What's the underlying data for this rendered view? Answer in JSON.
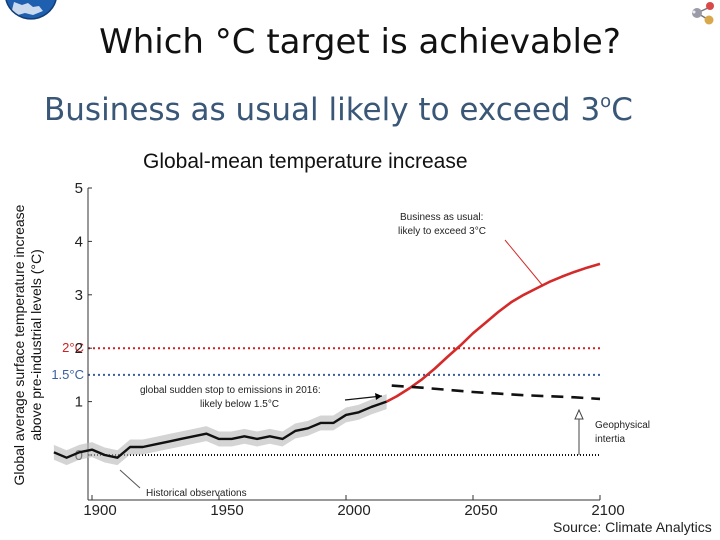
{
  "slide": {
    "title": "Which °C target is achievable?",
    "subtitle_main": "Business as usual likely to exceed 3",
    "subtitle_sup": "o",
    "subtitle_unit": "C",
    "source": "Source: Climate Analytics"
  },
  "colors": {
    "bau": "#d42a2a",
    "two_degree": "#cc2222",
    "one_five_degree": "#3a5f9e",
    "observed": "#111111",
    "uncertainty": "#b8b8b8",
    "logo_blue": "#1e5fb0"
  },
  "chart_data": {
    "type": "line",
    "title": "Global-mean temperature increase",
    "ylabel": "Global average surface temperature increase above pre-industrial levels (°C)",
    "ylabel_line1": "Global average surface temperature increase",
    "ylabel_line2": "above pre-industrial levels (°C)",
    "xlim": [
      1885,
      2100
    ],
    "ylim": [
      -0.9,
      5
    ],
    "x_ticks": [
      1900,
      1950,
      2000,
      2050,
      2100
    ],
    "y_ticks": [
      0,
      1,
      2,
      3,
      4,
      5
    ],
    "reference_lines": [
      {
        "name": "2°C",
        "label": "2°C",
        "value": 2.0,
        "style": "dotted"
      },
      {
        "name": "1.5°C",
        "label": "1.5°C",
        "value": 1.5,
        "style": "dotted"
      },
      {
        "name": "zero",
        "label": "",
        "value": 0.0,
        "style": "dotted"
      }
    ],
    "series": [
      {
        "name": "Historical observations",
        "x": [
          1885,
          1890,
          1895,
          1900,
          1905,
          1910,
          1915,
          1920,
          1925,
          1930,
          1935,
          1940,
          1945,
          1950,
          1955,
          1960,
          1965,
          1970,
          1975,
          1980,
          1985,
          1990,
          1995,
          2000,
          2005,
          2010,
          2016
        ],
        "values": [
          0.05,
          -0.05,
          0.05,
          0.1,
          0.0,
          -0.05,
          0.15,
          0.15,
          0.2,
          0.25,
          0.3,
          0.35,
          0.4,
          0.3,
          0.3,
          0.35,
          0.3,
          0.35,
          0.3,
          0.45,
          0.5,
          0.6,
          0.6,
          0.75,
          0.8,
          0.9,
          1.0
        ]
      },
      {
        "name": "Business as usual",
        "x": [
          2016,
          2020,
          2025,
          2030,
          2035,
          2040,
          2045,
          2050,
          2055,
          2060,
          2065,
          2070,
          2075,
          2080,
          2085,
          2090,
          2095,
          2100
        ],
        "values": [
          1.0,
          1.1,
          1.25,
          1.42,
          1.62,
          1.84,
          2.05,
          2.28,
          2.48,
          2.68,
          2.86,
          3.0,
          3.12,
          3.24,
          3.34,
          3.43,
          3.51,
          3.58
        ]
      },
      {
        "name": "Global sudden stop to emissions in 2016",
        "x": [
          2018,
          2030,
          2040,
          2050,
          2060,
          2070,
          2080,
          2090,
          2100
        ],
        "values": [
          1.3,
          1.26,
          1.22,
          1.18,
          1.15,
          1.12,
          1.1,
          1.08,
          1.05
        ]
      }
    ],
    "annotations": {
      "bau_line1": "Business as usual:",
      "bau_line2": "likely to exceed 3°C",
      "stop_line1": "global sudden stop to emissions in 2016:",
      "stop_line2": "likely below 1.5°C",
      "geo_line1": "Geophysical",
      "geo_line2": "intertia",
      "hist": "Historical observations"
    }
  }
}
